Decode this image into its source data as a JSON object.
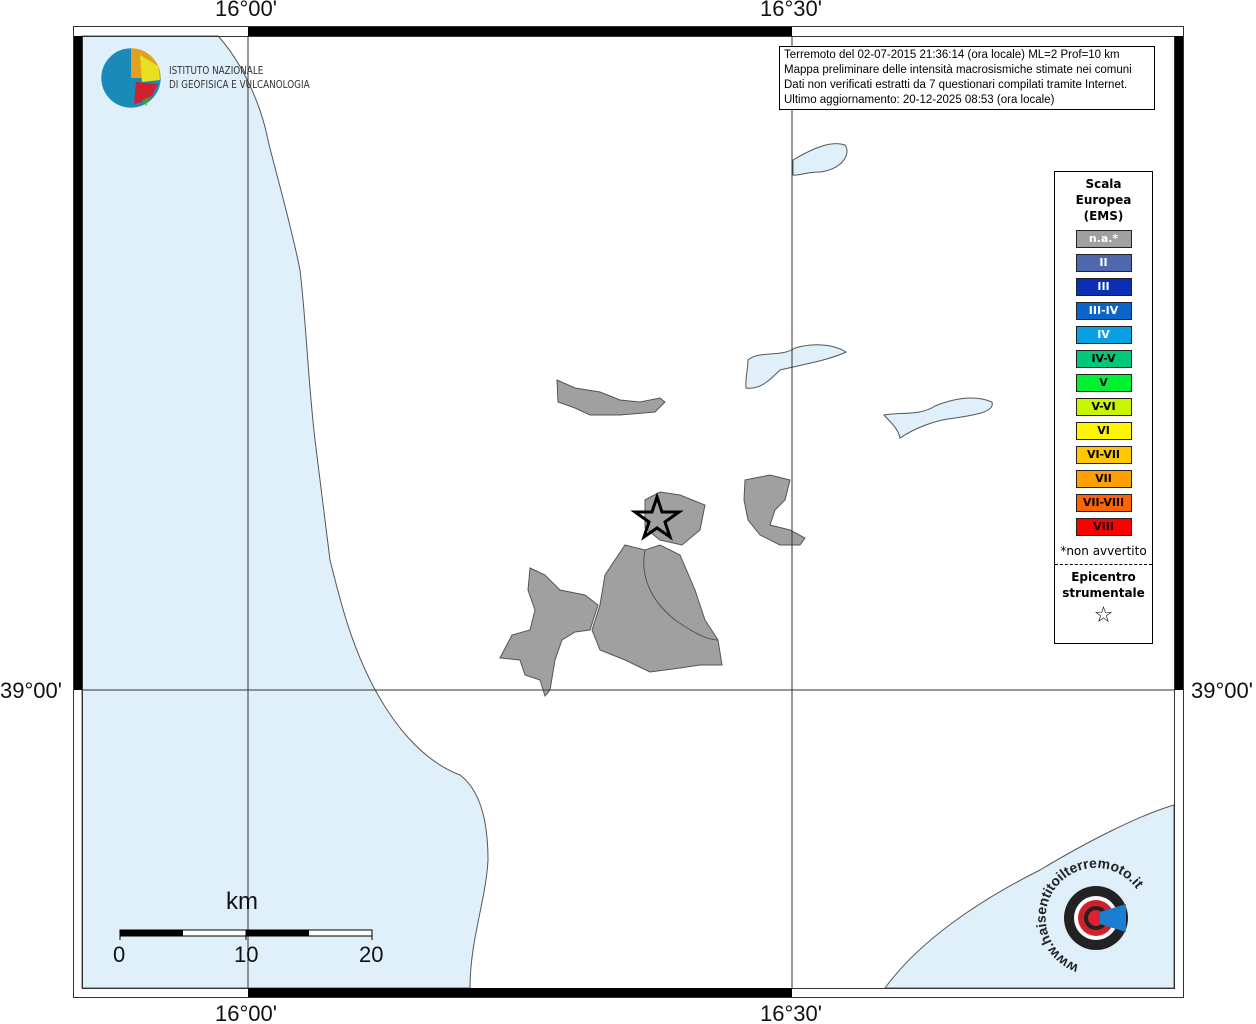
{
  "axes": {
    "top_labels": [
      "16°00'",
      "16°30'"
    ],
    "bottom_labels": [
      "16°00'",
      "16°30'"
    ],
    "left_label": "39°00'",
    "right_label": "39°00'"
  },
  "info_box": {
    "line1": "Terremoto del 02-07-2015 21:36:14 (ora locale) ML=2 Prof=10 km",
    "line2": "Mappa preliminare delle intensità macrosismiche stimate nei comuni",
    "line3": "Dati non verificati estratti da 7 questionari compilati tramite Internet.",
    "line4": "Ultimo aggiornamento: 20-12-2025 08:53 (ora locale)"
  },
  "logo": {
    "line1": "ISTITUTO NAZIONALE",
    "line2": "DI GEOFISICA E VULCANOLOGIA"
  },
  "legend": {
    "title_lines": [
      "Scala",
      "Europea",
      "(EMS)"
    ],
    "items": [
      {
        "label": "n.a.*",
        "color": "#a0a0a0",
        "text_color": "#ffffff"
      },
      {
        "label": "II",
        "color": "#4f68ad",
        "text_color": "#ffffff"
      },
      {
        "label": "III",
        "color": "#0a2fb4",
        "text_color": "#ffffff"
      },
      {
        "label": "III-IV",
        "color": "#0a64cc",
        "text_color": "#ffffff"
      },
      {
        "label": "IV",
        "color": "#0aa0e6",
        "text_color": "#ffffff"
      },
      {
        "label": "IV-V",
        "color": "#00c878",
        "text_color": "#000000"
      },
      {
        "label": "V",
        "color": "#00f032",
        "text_color": "#000000"
      },
      {
        "label": "V-VI",
        "color": "#c8f500",
        "text_color": "#000000"
      },
      {
        "label": "VI",
        "color": "#fff500",
        "text_color": "#000000"
      },
      {
        "label": "VI-VII",
        "color": "#ffc800",
        "text_color": "#000000"
      },
      {
        "label": "VII",
        "color": "#ffa000",
        "text_color": "#000000"
      },
      {
        "label": "VII-VIII",
        "color": "#ff6400",
        "text_color": "#000000"
      },
      {
        "label": "VIII",
        "color": "#ff0000",
        "text_color": "#000000"
      }
    ],
    "note": "*non avvertito",
    "epicenter_lines": [
      "Epicentro",
      "strumentale"
    ],
    "epicenter_symbol": "☆"
  },
  "scale_bar": {
    "unit": "km",
    "ticks": [
      "0",
      "10",
      "20"
    ]
  },
  "watermark": {
    "text": "www.haisentitoilterremoto.it"
  },
  "colors": {
    "sea": "#dff0fb",
    "land": "#ffffff",
    "no_data_area": "#a0a0a0"
  }
}
